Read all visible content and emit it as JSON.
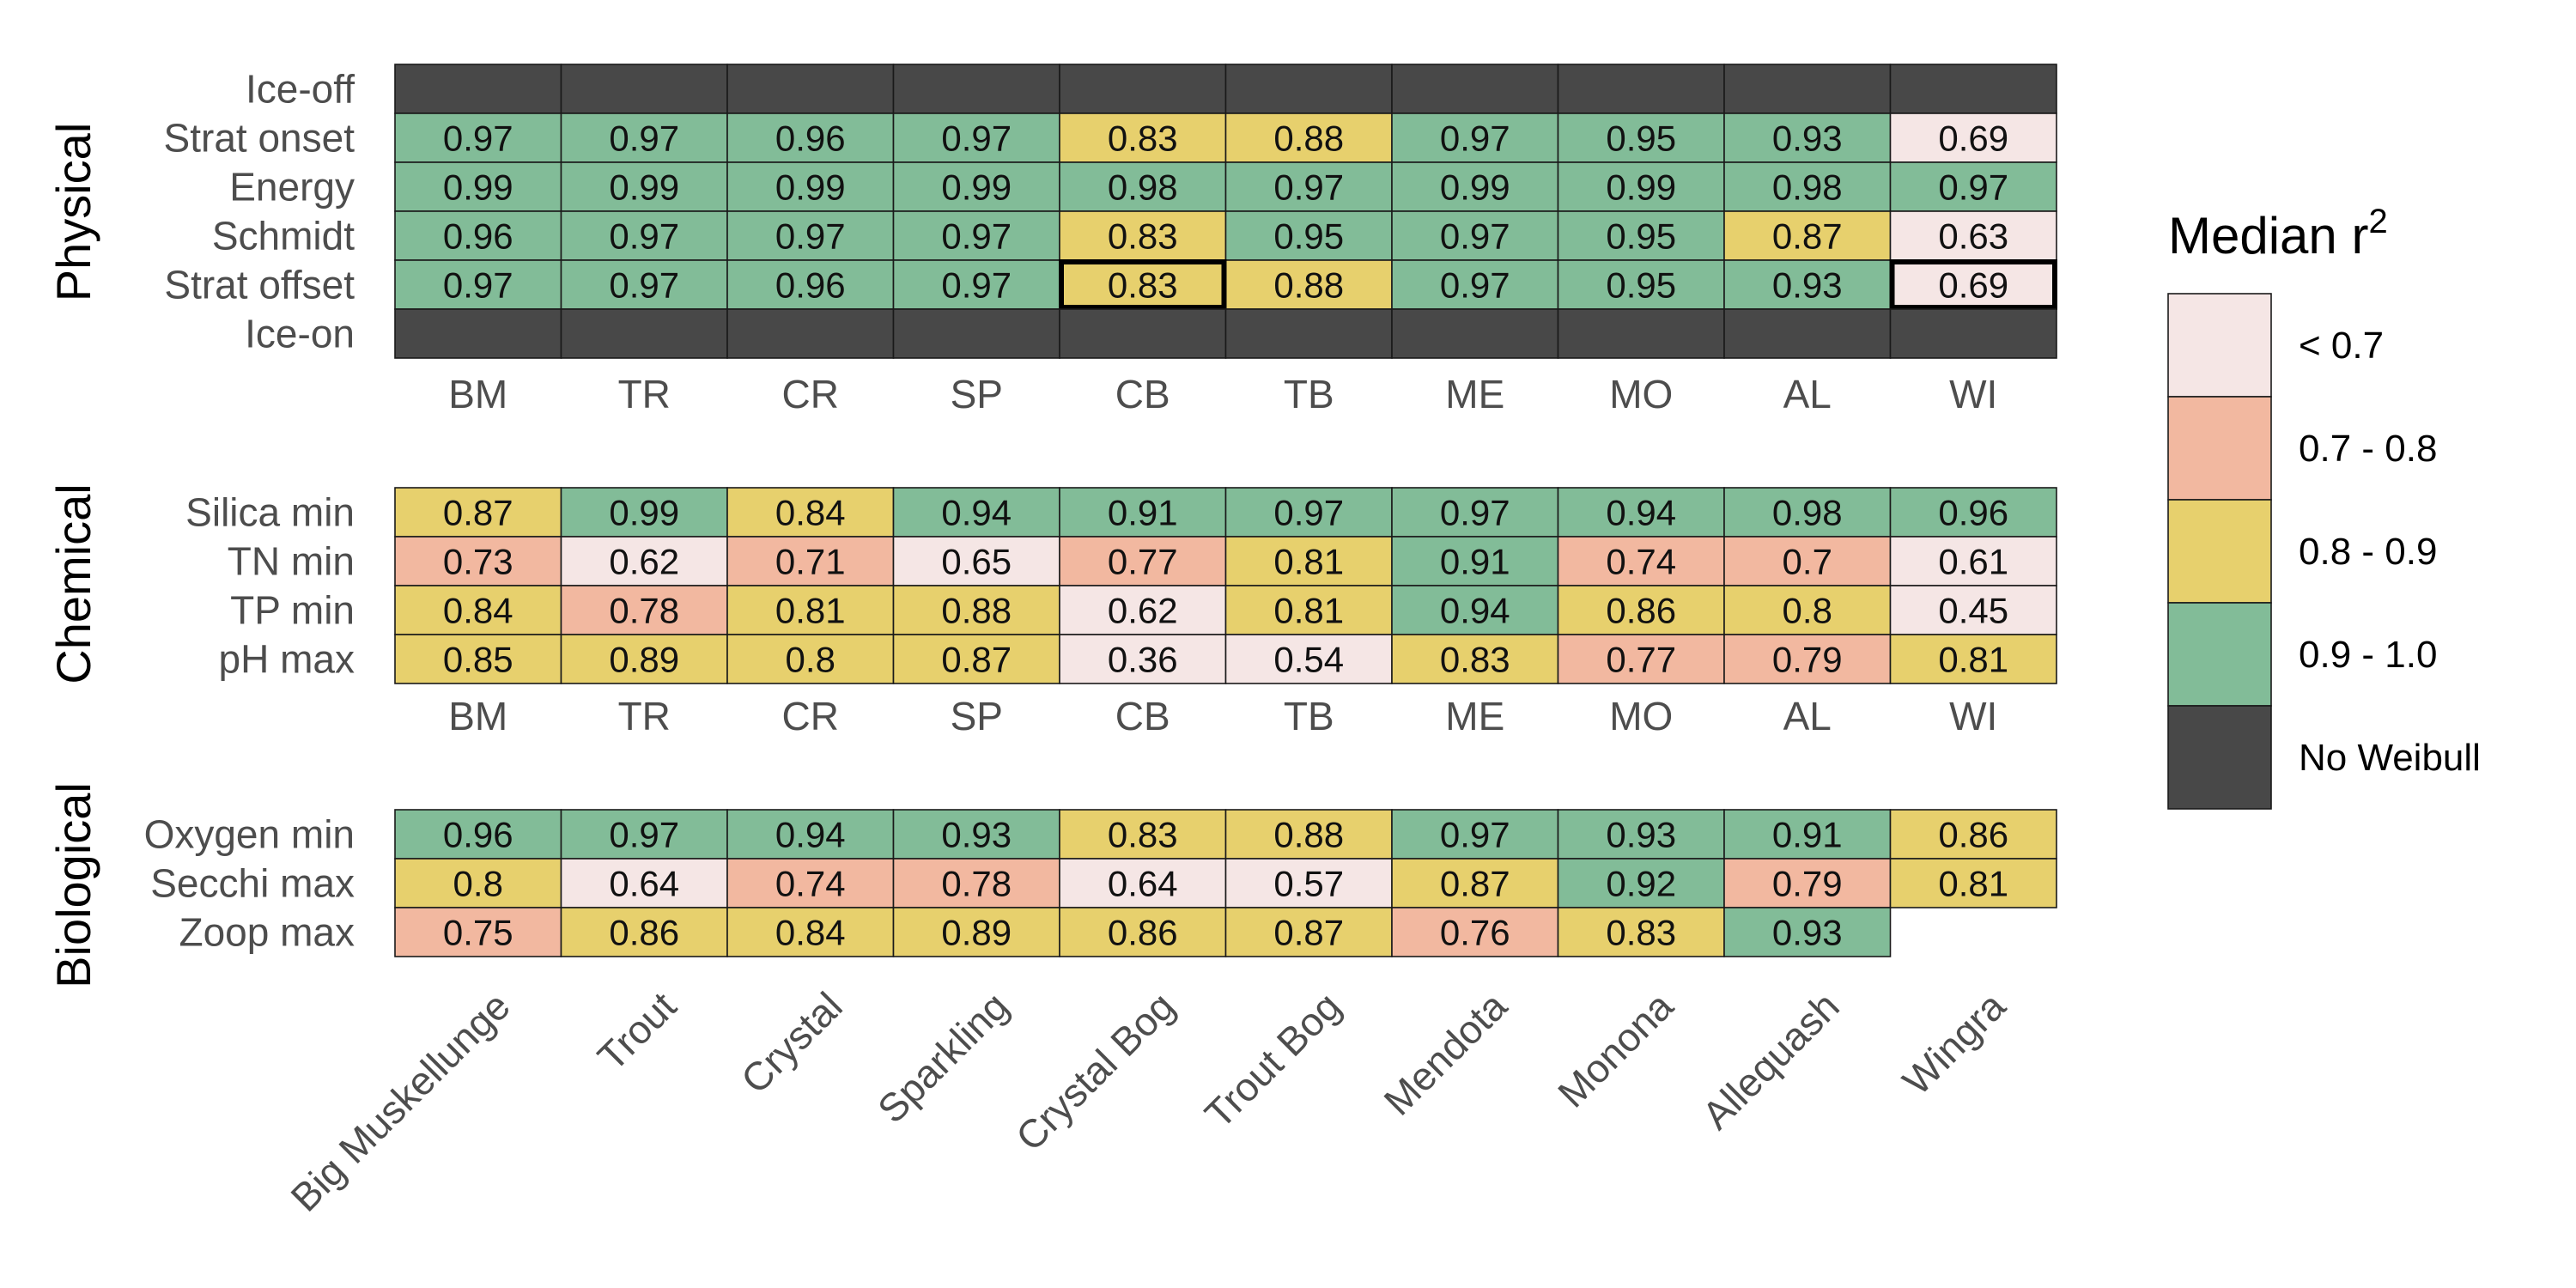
{
  "chart_data": {
    "type": "heatmap",
    "legend_title": "Median r",
    "legend_title_superscript": "2",
    "legend_position": "right",
    "legend": [
      {
        "label": "< 0.7",
        "color": "#f5e6e5"
      },
      {
        "label": "0.7 - 0.8",
        "color": "#f2b8a0"
      },
      {
        "label": "0.8 - 0.9",
        "color": "#e7d06d"
      },
      {
        "label": "0.9 - 1.0",
        "color": "#82bc98"
      },
      {
        "label": "No Weibull",
        "color": "#484848"
      }
    ],
    "columns": [
      "BM",
      "TR",
      "CR",
      "SP",
      "CB",
      "TB",
      "ME",
      "MO",
      "AL",
      "WI"
    ],
    "lake_names": [
      "Big Muskellunge",
      "Trout",
      "Crystal",
      "Sparkling",
      "Crystal Bog",
      "Trout Bog",
      "Mendota",
      "Monona",
      "Allequash",
      "Wingra"
    ],
    "panels": [
      {
        "group": "Physical",
        "rows": [
          {
            "label": "Ice-off",
            "values": [
              null,
              null,
              null,
              null,
              null,
              null,
              null,
              null,
              null,
              null
            ]
          },
          {
            "label": "Strat onset",
            "values": [
              "0.97",
              "0.97",
              "0.96",
              "0.97",
              "0.83",
              "0.88",
              "0.97",
              "0.95",
              "0.93",
              "0.69"
            ]
          },
          {
            "label": "Energy",
            "values": [
              "0.99",
              "0.99",
              "0.99",
              "0.99",
              "0.98",
              "0.97",
              "0.99",
              "0.99",
              "0.98",
              "0.97"
            ]
          },
          {
            "label": "Schmidt",
            "values": [
              "0.96",
              "0.97",
              "0.97",
              "0.97",
              "0.83",
              "0.95",
              "0.97",
              "0.95",
              "0.87",
              "0.63"
            ]
          },
          {
            "label": "Strat offset",
            "values": [
              "0.97",
              "0.97",
              "0.96",
              "0.97",
              "0.83",
              "0.88",
              "0.97",
              "0.95",
              "0.93",
              "0.69"
            ],
            "highlight": [
              4,
              9
            ]
          },
          {
            "label": "Ice-on",
            "values": [
              null,
              null,
              null,
              null,
              null,
              null,
              null,
              null,
              null,
              null
            ]
          }
        ]
      },
      {
        "group": "Chemical",
        "rows": [
          {
            "label": "Silica min",
            "values": [
              "0.87",
              "0.99",
              "0.84",
              "0.94",
              "0.91",
              "0.97",
              "0.97",
              "0.94",
              "0.98",
              "0.96"
            ]
          },
          {
            "label": "TN min",
            "values": [
              "0.73",
              "0.62",
              "0.71",
              "0.65",
              "0.77",
              "0.81",
              "0.91",
              "0.74",
              "0.7",
              "0.61"
            ]
          },
          {
            "label": "TP min",
            "values": [
              "0.84",
              "0.78",
              "0.81",
              "0.88",
              "0.62",
              "0.81",
              "0.94",
              "0.86",
              "0.8",
              "0.45"
            ]
          },
          {
            "label": "pH max",
            "values": [
              "0.85",
              "0.89",
              "0.8",
              "0.87",
              "0.36",
              "0.54",
              "0.83",
              "0.77",
              "0.79",
              "0.81"
            ]
          }
        ]
      },
      {
        "group": "Biological",
        "rows": [
          {
            "label": "Oxygen min",
            "values": [
              "0.96",
              "0.97",
              "0.94",
              "0.93",
              "0.83",
              "0.88",
              "0.97",
              "0.93",
              "0.91",
              "0.86"
            ]
          },
          {
            "label": "Secchi max",
            "values": [
              "0.8",
              "0.64",
              "0.74",
              "0.78",
              "0.64",
              "0.57",
              "0.87",
              "0.92",
              "0.79",
              "0.81"
            ]
          },
          {
            "label": "Zoop max",
            "values": [
              "0.75",
              "0.86",
              "0.84",
              "0.89",
              "0.86",
              "0.87",
              "0.76",
              "0.83",
              "0.93",
              ""
            ]
          }
        ]
      }
    ]
  }
}
